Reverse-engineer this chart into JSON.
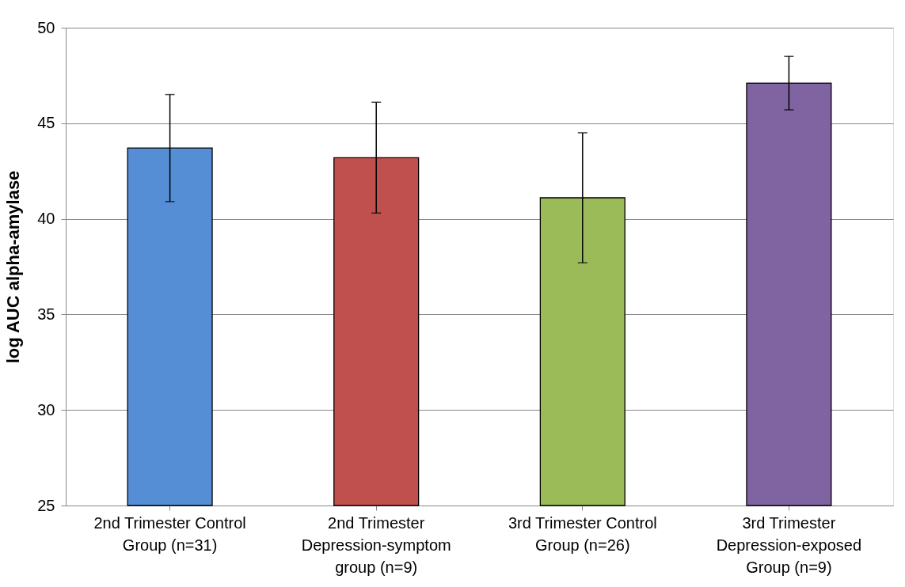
{
  "chart_data": {
    "type": "bar",
    "ylabel": "log AUC alpha-amylase",
    "categories": [
      "2nd Trimester Control\nGroup (n=31)",
      "2nd Trimester\nDepression-symptom\ngroup (n=9)",
      "3rd Trimester Control\nGroup (n=26)",
      "3rd Trimester\nDepression-exposed\nGroup (n=9)"
    ],
    "values": [
      43.7,
      43.2,
      41.1,
      47.1
    ],
    "errors": [
      2.8,
      2.9,
      3.4,
      1.4
    ],
    "colors": [
      "#558ed5",
      "#c0504d",
      "#9bbb59",
      "#8064a2"
    ],
    "ylim": [
      25,
      50
    ],
    "yticks": [
      25,
      30,
      35,
      40,
      45,
      50
    ],
    "grid": "y",
    "legend": false
  }
}
